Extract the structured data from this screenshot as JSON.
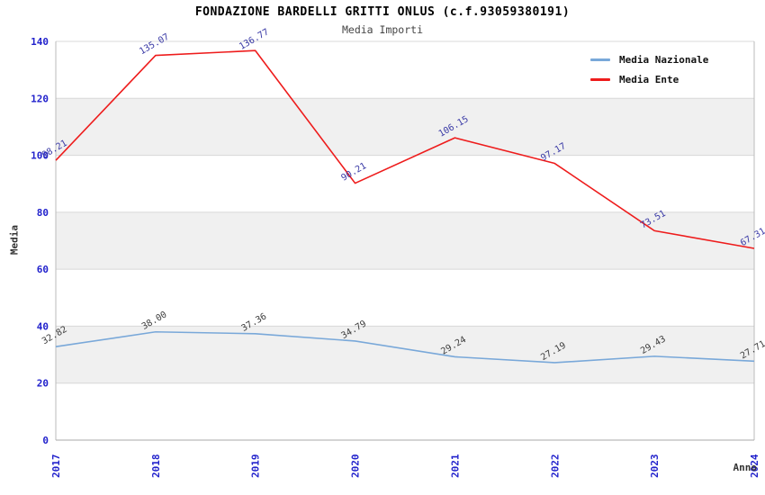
{
  "chart_data": {
    "type": "line",
    "title": "FONDAZIONE BARDELLI GRITTI ONLUS (c.f.93059380191)",
    "subtitle": "Media Importi",
    "xlabel": "Anno",
    "ylabel": "Media",
    "categories": [
      "2017",
      "2018",
      "2019",
      "2020",
      "2021",
      "2022",
      "2023",
      "2024"
    ],
    "ylim": [
      0,
      140
    ],
    "yticks": [
      0,
      20,
      40,
      60,
      80,
      100,
      120,
      140
    ],
    "grid": true,
    "legend_position": "top-right",
    "series": [
      {
        "name": "Media Nazionale",
        "color": "#79a8d9",
        "label_color": "#3d3d3d",
        "values": [
          32.82,
          38.0,
          37.36,
          34.79,
          29.24,
          27.19,
          29.43,
          27.71
        ]
      },
      {
        "name": "Media Ente",
        "color": "#ee1c1c",
        "label_color": "#3a3aa6",
        "values": [
          98.21,
          135.07,
          136.77,
          90.21,
          106.15,
          97.17,
          73.51,
          67.31
        ]
      }
    ],
    "colors": {
      "tick_label": "#2222cc",
      "band_gray": "#f0f0f0",
      "gridline": "#d8d8d8",
      "axis_line": "#bbbbbb",
      "bottom_axis": "#aaaaaa"
    }
  }
}
